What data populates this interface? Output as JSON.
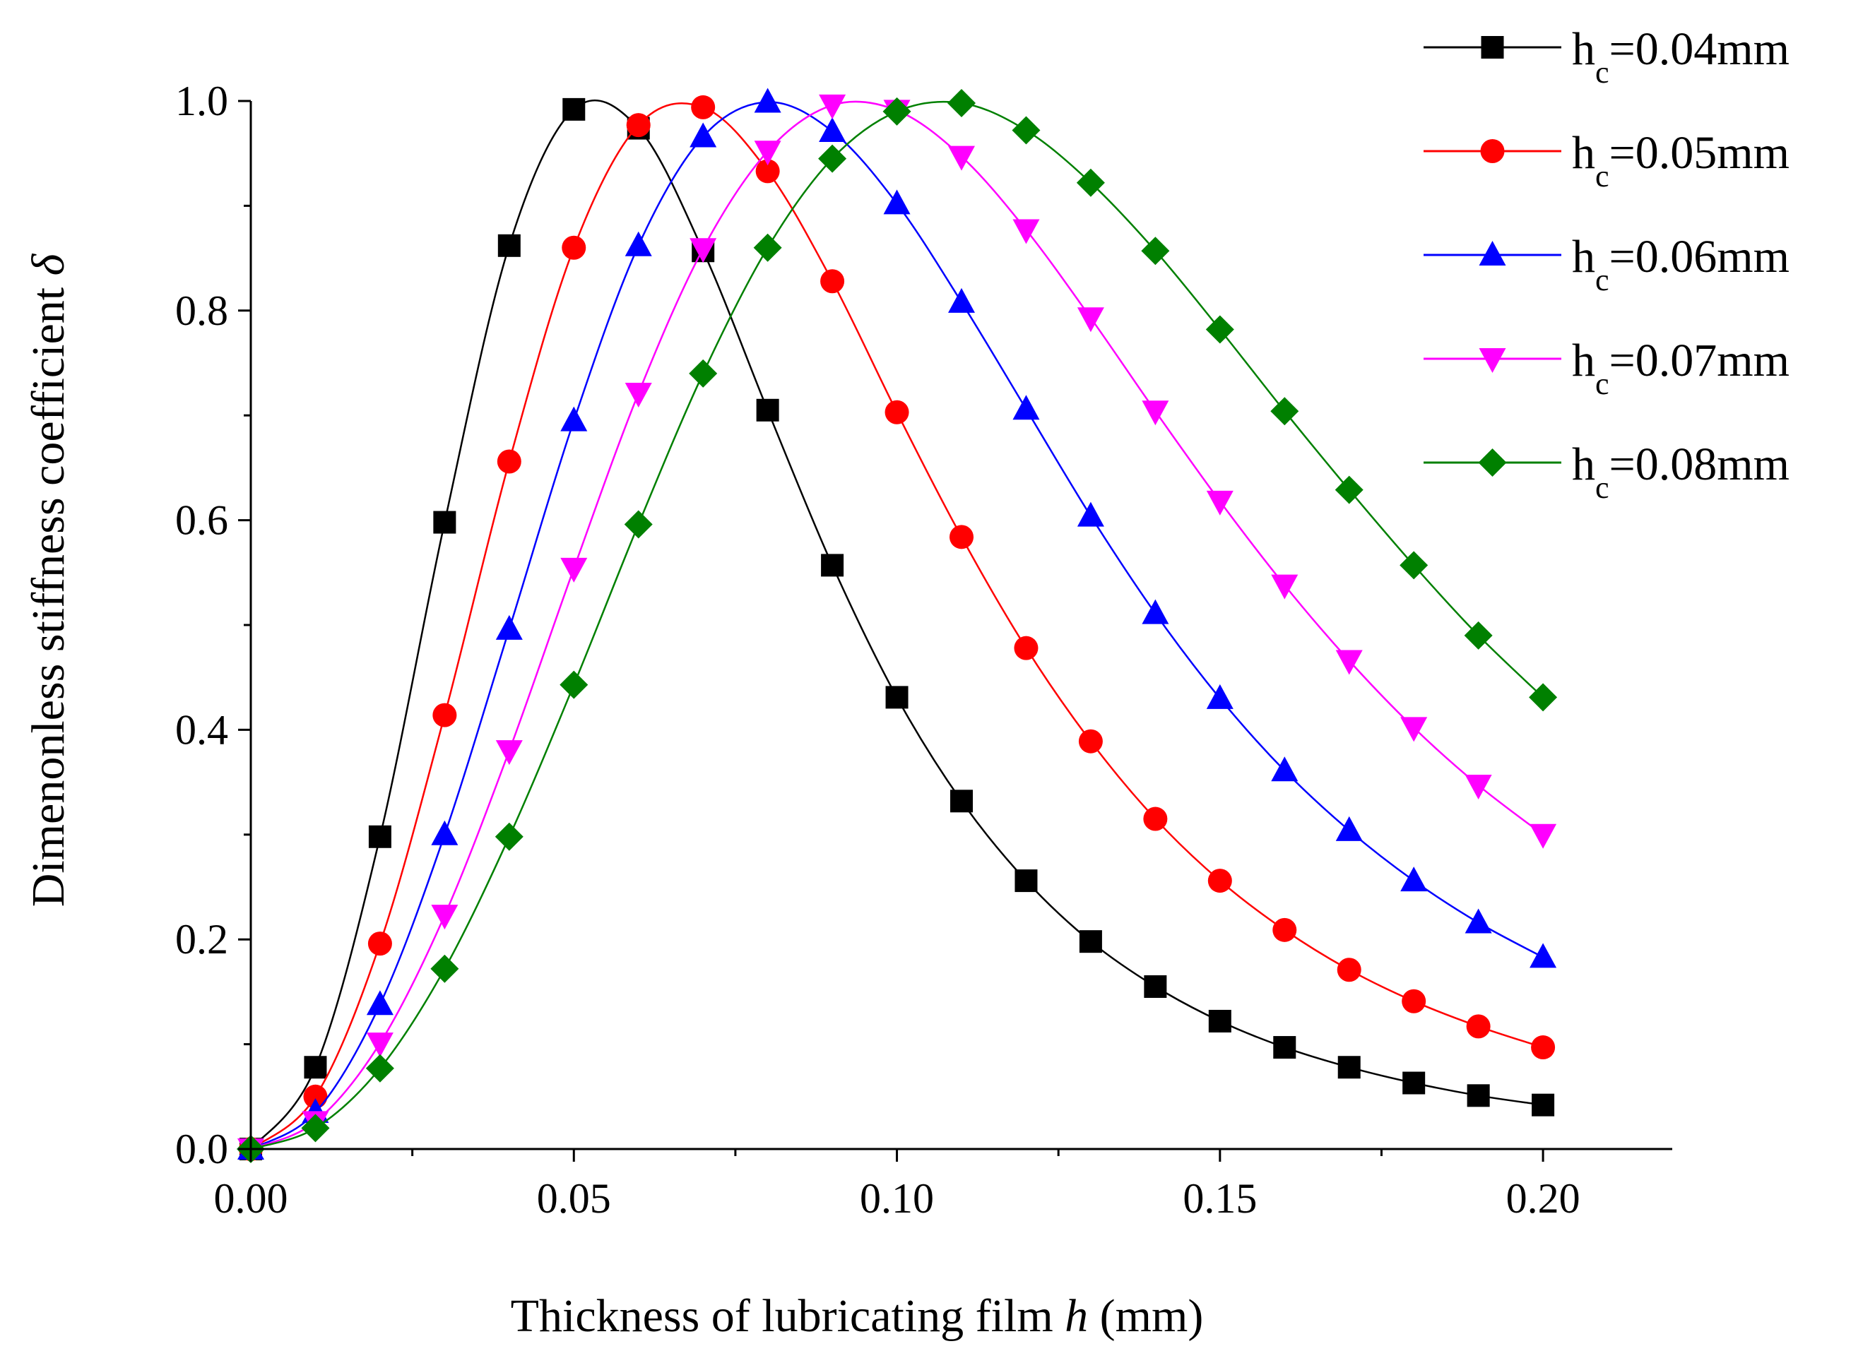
{
  "chart_data": {
    "type": "line",
    "title": "",
    "xlabel_prefix": "Thickness of lubricating film ",
    "xlabel_var": "h",
    "xlabel_suffix": " (mm)",
    "ylabel_prefix": "Dimenonless stiffness coefficient ",
    "ylabel_var": "δ",
    "xlim": [
      0,
      0.22
    ],
    "ylim": [
      0,
      1.0
    ],
    "x_ticks": [
      0.0,
      0.05,
      0.1,
      0.15,
      0.2
    ],
    "x_tick_labels": [
      "0.00",
      "0.05",
      "0.10",
      "0.15",
      "0.20"
    ],
    "y_ticks": [
      0.0,
      0.2,
      0.4,
      0.6,
      0.8,
      1.0
    ],
    "y_tick_labels": [
      "0.0",
      "0.2",
      "0.4",
      "0.6",
      "0.8",
      "1.0"
    ],
    "legend_position": "top-right",
    "x": [
      0,
      0.01,
      0.02,
      0.03,
      0.04,
      0.05,
      0.06,
      0.07,
      0.08,
      0.09,
      0.1,
      0.11,
      0.12,
      0.13,
      0.14,
      0.15,
      0.16,
      0.17,
      0.18,
      0.19,
      0.2
    ],
    "series": [
      {
        "label_main": "h",
        "label_sub": "c",
        "label_tail": "=0.04mm",
        "hc": 0.04,
        "color": "#000000",
        "marker": "square",
        "values": [
          0.0,
          0.078,
          0.298,
          0.598,
          0.862,
          0.992,
          0.974,
          0.857,
          0.705,
          0.557,
          0.431,
          0.332,
          0.256,
          0.198,
          0.155,
          0.122,
          0.097,
          0.078,
          0.063,
          0.051,
          0.042
        ]
      },
      {
        "label_main": "h",
        "label_sub": "c",
        "label_tail": "=0.05mm",
        "hc": 0.05,
        "color": "#ff0000",
        "marker": "circle",
        "values": [
          0.0,
          0.05,
          0.196,
          0.414,
          0.656,
          0.86,
          0.977,
          0.994,
          0.933,
          0.828,
          0.703,
          0.584,
          0.478,
          0.389,
          0.315,
          0.256,
          0.209,
          0.171,
          0.141,
          0.117,
          0.097
        ]
      },
      {
        "label_main": "h",
        "label_sub": "c",
        "label_tail": "=0.06mm",
        "hc": 0.06,
        "color": "#0000ff",
        "marker": "triangle-up",
        "values": [
          0.0,
          0.035,
          0.138,
          0.3,
          0.496,
          0.695,
          0.862,
          0.966,
          0.999,
          0.971,
          0.902,
          0.808,
          0.706,
          0.604,
          0.511,
          0.43,
          0.361,
          0.304,
          0.256,
          0.216,
          0.183
        ]
      },
      {
        "label_main": "h",
        "label_sub": "c",
        "label_tail": "=0.07mm",
        "hc": 0.07,
        "color": "#ff00ff",
        "marker": "triangle-down",
        "values": [
          0.0,
          0.026,
          0.101,
          0.223,
          0.38,
          0.554,
          0.721,
          0.859,
          0.952,
          0.996,
          0.991,
          0.947,
          0.877,
          0.793,
          0.704,
          0.618,
          0.538,
          0.466,
          0.402,
          0.347,
          0.3
        ]
      },
      {
        "label_main": "h",
        "label_sub": "c",
        "label_tail": "=0.08mm",
        "hc": 0.08,
        "color": "#008000",
        "marker": "diamond",
        "values": [
          0.0,
          0.02,
          0.077,
          0.172,
          0.298,
          0.443,
          0.596,
          0.74,
          0.86,
          0.945,
          0.99,
          0.998,
          0.972,
          0.922,
          0.857,
          0.782,
          0.704,
          0.629,
          0.557,
          0.49,
          0.431
        ]
      }
    ]
  }
}
